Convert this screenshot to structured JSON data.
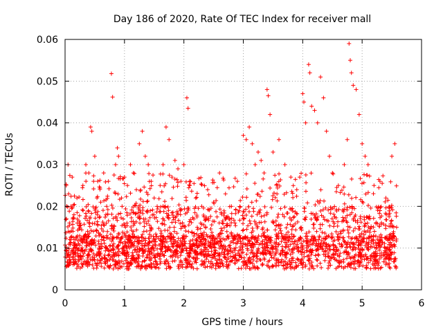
{
  "chart_data": {
    "type": "scatter",
    "title": "Day 186 of 2020, Rate Of TEC Index for receiver mall",
    "xlabel": "GPS time / hours",
    "ylabel": "ROTI / TECUs",
    "xlim": [
      0,
      6
    ],
    "ylim": [
      0,
      0.06
    ],
    "xticks": [
      "0",
      "1",
      "2",
      "3",
      "4",
      "5",
      "6"
    ],
    "yticks": [
      "0",
      "0.01",
      "0.02",
      "0.03",
      "0.04",
      "0.05",
      "0.06"
    ],
    "grid": true,
    "marker": "plus",
    "color": "#ff0000",
    "x_range_data": [
      0,
      5.58
    ],
    "series": [
      {
        "name": "ROTI",
        "points": [
          [
            0.02,
            0.025
          ],
          [
            0.05,
            0.03
          ],
          [
            0.06,
            0.023
          ],
          [
            0.1,
            0.02
          ],
          [
            0.12,
            0.027
          ],
          [
            0.15,
            0.018
          ],
          [
            0.2,
            0.022
          ],
          [
            0.25,
            0.016
          ],
          [
            0.3,
            0.025
          ],
          [
            0.35,
            0.03
          ],
          [
            0.4,
            0.028
          ],
          [
            0.43,
            0.039
          ],
          [
            0.45,
            0.038
          ],
          [
            0.48,
            0.026
          ],
          [
            0.5,
            0.032
          ],
          [
            0.55,
            0.026
          ],
          [
            0.6,
            0.021
          ],
          [
            0.65,
            0.028
          ],
          [
            0.7,
            0.02
          ],
          [
            0.73,
            0.026
          ],
          [
            0.78,
            0.0518
          ],
          [
            0.8,
            0.0462
          ],
          [
            0.85,
            0.03
          ],
          [
            0.88,
            0.034
          ],
          [
            0.9,
            0.032
          ],
          [
            0.95,
            0.022
          ],
          [
            1.0,
            0.027
          ],
          [
            1.05,
            0.025
          ],
          [
            1.1,
            0.03
          ],
          [
            1.15,
            0.028
          ],
          [
            1.2,
            0.024
          ],
          [
            1.25,
            0.035
          ],
          [
            1.3,
            0.038
          ],
          [
            1.35,
            0.032
          ],
          [
            1.4,
            0.03
          ],
          [
            1.45,
            0.026
          ],
          [
            1.5,
            0.022
          ],
          [
            1.55,
            0.02
          ],
          [
            1.6,
            0.025
          ],
          [
            1.65,
            0.03
          ],
          [
            1.7,
            0.039
          ],
          [
            1.75,
            0.036
          ],
          [
            1.8,
            0.027
          ],
          [
            1.85,
            0.031
          ],
          [
            1.9,
            0.029
          ],
          [
            1.95,
            0.026
          ],
          [
            2.0,
            0.03
          ],
          [
            2.05,
            0.046
          ],
          [
            2.07,
            0.0435
          ],
          [
            2.1,
            0.025
          ],
          [
            2.2,
            0.022
          ],
          [
            2.3,
            0.02
          ],
          [
            2.4,
            0.024
          ],
          [
            2.5,
            0.021
          ],
          [
            2.6,
            0.028
          ],
          [
            2.7,
            0.023
          ],
          [
            2.8,
            0.02
          ],
          [
            2.9,
            0.026
          ],
          [
            3.0,
            0.037
          ],
          [
            3.05,
            0.036
          ],
          [
            3.1,
            0.039
          ],
          [
            3.15,
            0.035
          ],
          [
            3.2,
            0.03
          ],
          [
            3.25,
            0.033
          ],
          [
            3.3,
            0.031
          ],
          [
            3.35,
            0.028
          ],
          [
            3.4,
            0.048
          ],
          [
            3.42,
            0.0465
          ],
          [
            3.45,
            0.042
          ],
          [
            3.5,
            0.033
          ],
          [
            3.6,
            0.036
          ],
          [
            3.7,
            0.03
          ],
          [
            3.8,
            0.027
          ],
          [
            3.9,
            0.024
          ],
          [
            4.0,
            0.047
          ],
          [
            4.02,
            0.045
          ],
          [
            4.05,
            0.04
          ],
          [
            4.1,
            0.054
          ],
          [
            4.12,
            0.052
          ],
          [
            4.15,
            0.044
          ],
          [
            4.2,
            0.043
          ],
          [
            4.25,
            0.04
          ],
          [
            4.3,
            0.051
          ],
          [
            4.35,
            0.046
          ],
          [
            4.4,
            0.038
          ],
          [
            4.45,
            0.032
          ],
          [
            4.5,
            0.028
          ],
          [
            4.6,
            0.025
          ],
          [
            4.7,
            0.03
          ],
          [
            4.75,
            0.036
          ],
          [
            4.78,
            0.059
          ],
          [
            4.8,
            0.055
          ],
          [
            4.82,
            0.052
          ],
          [
            4.85,
            0.049
          ],
          [
            4.9,
            0.048
          ],
          [
            4.95,
            0.042
          ],
          [
            5.0,
            0.035
          ],
          [
            5.05,
            0.032
          ],
          [
            5.1,
            0.03
          ],
          [
            5.2,
            0.025
          ],
          [
            5.3,
            0.026
          ],
          [
            5.4,
            0.022
          ],
          [
            5.5,
            0.032
          ],
          [
            5.55,
            0.035
          ],
          [
            5.58,
            0.015
          ]
        ],
        "density_profile_note": "dense baseline band between 0.005 and 0.02 across 0–5.58 h"
      }
    ]
  }
}
